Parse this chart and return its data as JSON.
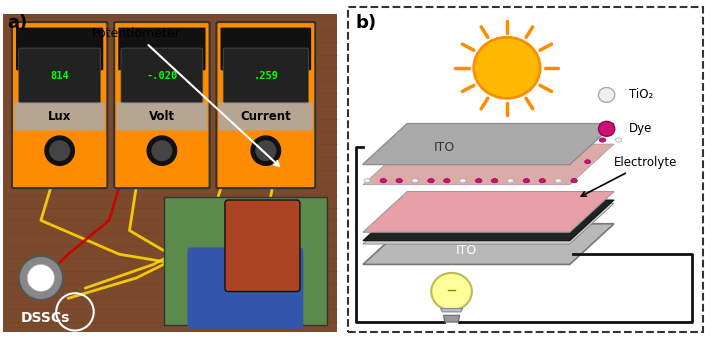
{
  "fig_width": 7.1,
  "fig_height": 3.39,
  "dpi": 100,
  "label_a": "a)",
  "label_b": "b)",
  "label_potentiometer": "Potentiometer",
  "label_lux": "Lux",
  "label_volt": "Volt",
  "label_current": "Current",
  "label_dsscs": "DSSCs",
  "label_ito_top": "ITO",
  "label_ito_bottom": "ITO",
  "label_tio2": "TiO₂",
  "label_dye": "Dye",
  "label_electrolyte": "Electrolyte",
  "bg_color": "#ffffff",
  "photo_bg": "#8B5E3C",
  "meter_color": "#FFA500",
  "meter_dark": "#333333",
  "meter_screen": "#1a1a1a",
  "dashed_box_color": "#333333",
  "ito_color": "#C8C8C8",
  "electrolyte_color": "#E8A0A0",
  "black_layer": "#222222",
  "tio2_color": "#F0F0F0",
  "dye_color": "#CC1177",
  "sun_color": "#FFB800",
  "bulb_color": "#FFFF99",
  "wire_color": "#111111"
}
